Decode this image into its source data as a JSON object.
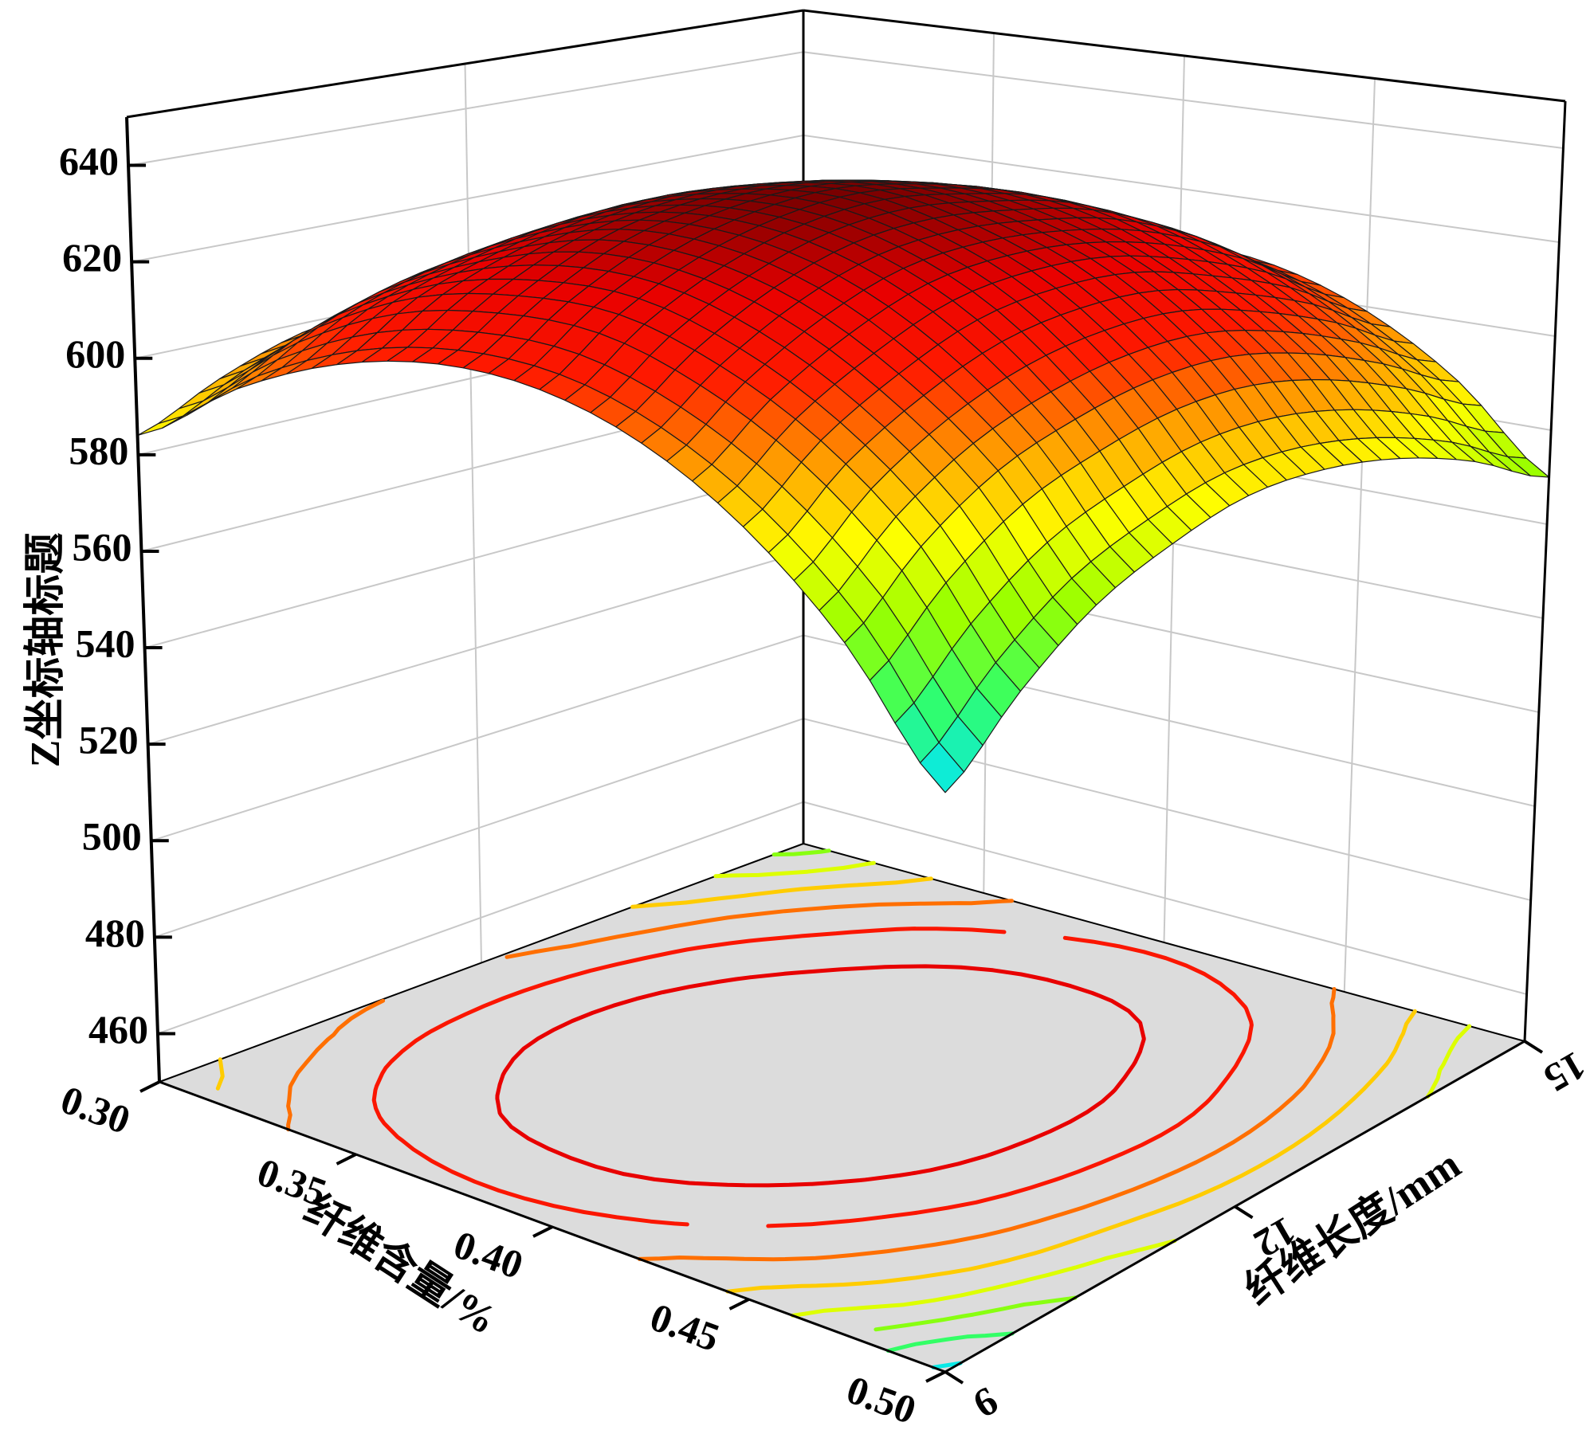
{
  "chart_data": {
    "type": "surface3d",
    "x_label": "纤维含量/%",
    "y_label": "纤维长度/mm",
    "z_label": "Z坐标轴标题",
    "x": [
      0.3,
      0.325,
      0.35,
      0.375,
      0.4,
      0.425,
      0.45,
      0.475,
      0.5
    ],
    "y": [
      9,
      9.75,
      10.5,
      11.25,
      12,
      12.75,
      13.5,
      14.25,
      15
    ],
    "z": [
      [
        584,
        597,
        605,
        608,
        606,
        599,
        587,
        570,
        548
      ],
      [
        592,
        606,
        615,
        618,
        617,
        610,
        599,
        583,
        561
      ],
      [
        598,
        612,
        621,
        626,
        625,
        619,
        608,
        593,
        572
      ],
      [
        600,
        615,
        625,
        630,
        630,
        625,
        615,
        599,
        579
      ],
      [
        600,
        615,
        626,
        631,
        632,
        627,
        618,
        603,
        584
      ],
      [
        596,
        612,
        623,
        629,
        630,
        626,
        618,
        604,
        585
      ],
      [
        589,
        606,
        617,
        624,
        626,
        623,
        614,
        601,
        583
      ],
      [
        579,
        596,
        609,
        616,
        618,
        616,
        608,
        595,
        578
      ],
      [
        566,
        584,
        597,
        605,
        608,
        606,
        599,
        587,
        570
      ]
    ],
    "xlim": [
      0.3,
      0.5
    ],
    "xticks": [
      {
        "value": 0.3,
        "label": "0.30"
      },
      {
        "value": 0.35,
        "label": "0.35"
      },
      {
        "value": 0.4,
        "label": "0.40"
      },
      {
        "value": 0.45,
        "label": "0.45"
      },
      {
        "value": 0.5,
        "label": "0.50"
      }
    ],
    "ylim": [
      9,
      15
    ],
    "yticks": [
      9,
      12,
      15
    ],
    "zlim": [
      450,
      650
    ],
    "zticks": [
      460,
      480,
      500,
      520,
      540,
      560,
      580,
      600,
      620,
      640
    ],
    "grid": true,
    "colormap": [
      "#00e5ff",
      "#33ff66",
      "#99ff00",
      "#ffff00",
      "#ff9900",
      "#ff1a00",
      "#e80000",
      "#7a0000"
    ],
    "contour_levels": [
      550,
      560,
      570,
      580,
      590,
      600,
      610,
      620
    ],
    "floor_color": "#dcdcdc"
  }
}
